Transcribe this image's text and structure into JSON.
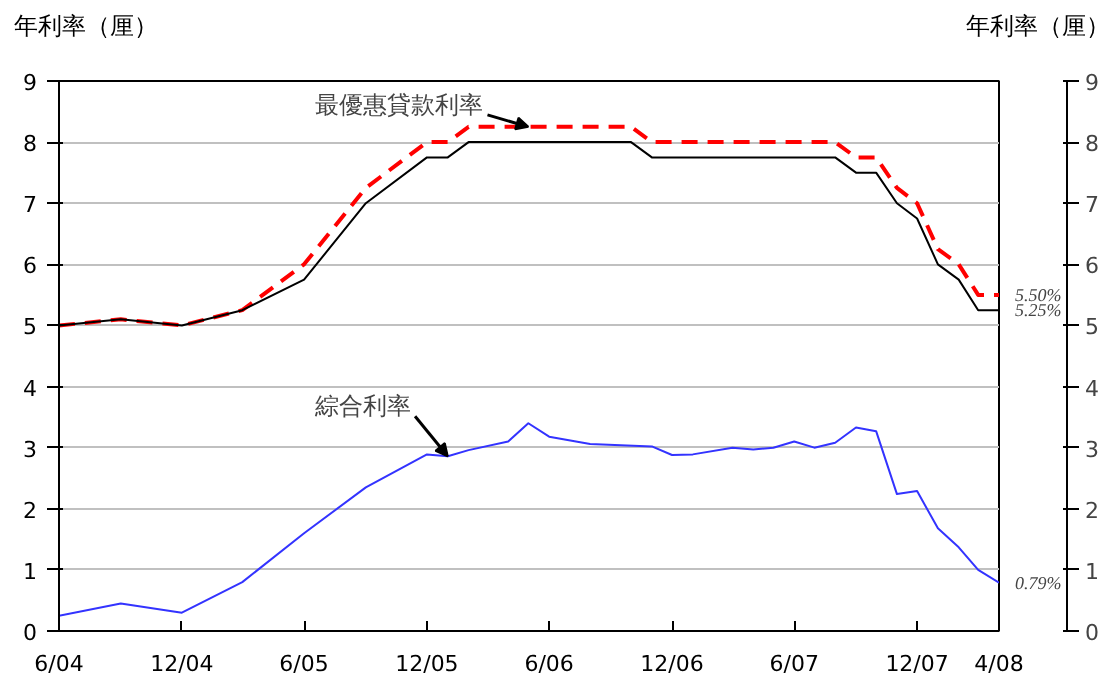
{
  "chart_data": {
    "type": "line",
    "ylabel": "年利率（厘）",
    "y2label": "年利率（厘）",
    "xlim": [
      "2004-06",
      "2008-04"
    ],
    "xticks": [
      {
        "value": "2004-06",
        "label": "6/04"
      },
      {
        "value": "2004-12",
        "label": "12/04"
      },
      {
        "value": "2005-06",
        "label": "6/05"
      },
      {
        "value": "2005-12",
        "label": "12/05"
      },
      {
        "value": "2006-06",
        "label": "6/06"
      },
      {
        "value": "2006-12",
        "label": "12/06"
      },
      {
        "value": "2007-06",
        "label": "6/07"
      },
      {
        "value": "2007-12",
        "label": "12/07"
      },
      {
        "value": "2008-04",
        "label": "4/08"
      }
    ],
    "ylim": [
      0,
      9
    ],
    "yticks": [
      0,
      1,
      2,
      3,
      4,
      5,
      6,
      7,
      8,
      9
    ],
    "y2lim": [
      0,
      9
    ],
    "y2ticks": [
      0,
      1,
      2,
      3,
      4,
      5,
      6,
      7,
      8,
      9
    ],
    "grid": "y",
    "series": [
      {
        "color": "#ff0000",
        "line_style": "dashed",
        "x": [
          "2004-06",
          "2004-09",
          "2004-12",
          "2005-03",
          "2005-06",
          "2005-09",
          "2005-12",
          "2006-01",
          "2006-02",
          "2006-10",
          "2006-11",
          "2007-08",
          "2007-09",
          "2007-10",
          "2007-11",
          "2007-12",
          "2008-01",
          "2008-02",
          "2008-03",
          "2008-04"
        ],
        "values": [
          5,
          5.1,
          5,
          5.25,
          6.0,
          7.25,
          8.0,
          8.0,
          8.25,
          8.25,
          8.0,
          8.0,
          7.75,
          7.75,
          7.25,
          7.0,
          6.25,
          6.0,
          5.5,
          5.5
        ]
      },
      {
        "color": "#000000",
        "line_style": "solid",
        "x": [
          "2004-06",
          "2004-09",
          "2004-12",
          "2005-03",
          "2005-06",
          "2005-09",
          "2005-12",
          "2006-01",
          "2006-02",
          "2006-10",
          "2006-11",
          "2007-08",
          "2007-09",
          "2007-10",
          "2007-11",
          "2007-12",
          "2008-01",
          "2008-02",
          "2008-03",
          "2008-04"
        ],
        "values": [
          5,
          5.1,
          5,
          5.25,
          5.75,
          7.0,
          7.75,
          7.75,
          8.0,
          8.0,
          7.75,
          7.75,
          7.5,
          7.5,
          7.0,
          6.75,
          6.0,
          5.75,
          5.25,
          5.25
        ]
      },
      {
        "color": "#3333ff",
        "line_style": "solid",
        "x": [
          "2004-06",
          "2004-09",
          "2004-12",
          "2005-03",
          "2005-06",
          "2005-09",
          "2005-12",
          "2006-01",
          "2006-02",
          "2006-04",
          "2006-05",
          "2006-06",
          "2006-08",
          "2006-11",
          "2006-12",
          "2007-01",
          "2007-03",
          "2007-04",
          "2007-05",
          "2007-06",
          "2007-07",
          "2007-08",
          "2007-09",
          "2007-10",
          "2007-11",
          "2007-12",
          "2008-01",
          "2008-02",
          "2008-03",
          "2008-04"
        ],
        "values": [
          0.25,
          0.45,
          0.3,
          0.8,
          1.6,
          2.35,
          2.89,
          2.86,
          2.96,
          3.1,
          3.4,
          3.18,
          3.06,
          3.02,
          2.88,
          2.89,
          3.0,
          2.97,
          3.0,
          3.1,
          3.0,
          3.08,
          3.33,
          3.27,
          2.24,
          2.29,
          1.68,
          1.37,
          1.0,
          0.79
        ]
      }
    ],
    "annotations": [
      {
        "text": "最優惠貸款利率",
        "x": "2006-05",
        "y": 8.25
      },
      {
        "text": "綜合利率",
        "x": "2006-01",
        "y": 2.86
      },
      {
        "text": "5.50%",
        "x": "2008-04",
        "y": 5.5
      },
      {
        "text": "5.25%",
        "x": "2008-04",
        "y": 5.25
      },
      {
        "text": "0.79%",
        "x": "2008-04",
        "y": 0.79
      }
    ]
  }
}
